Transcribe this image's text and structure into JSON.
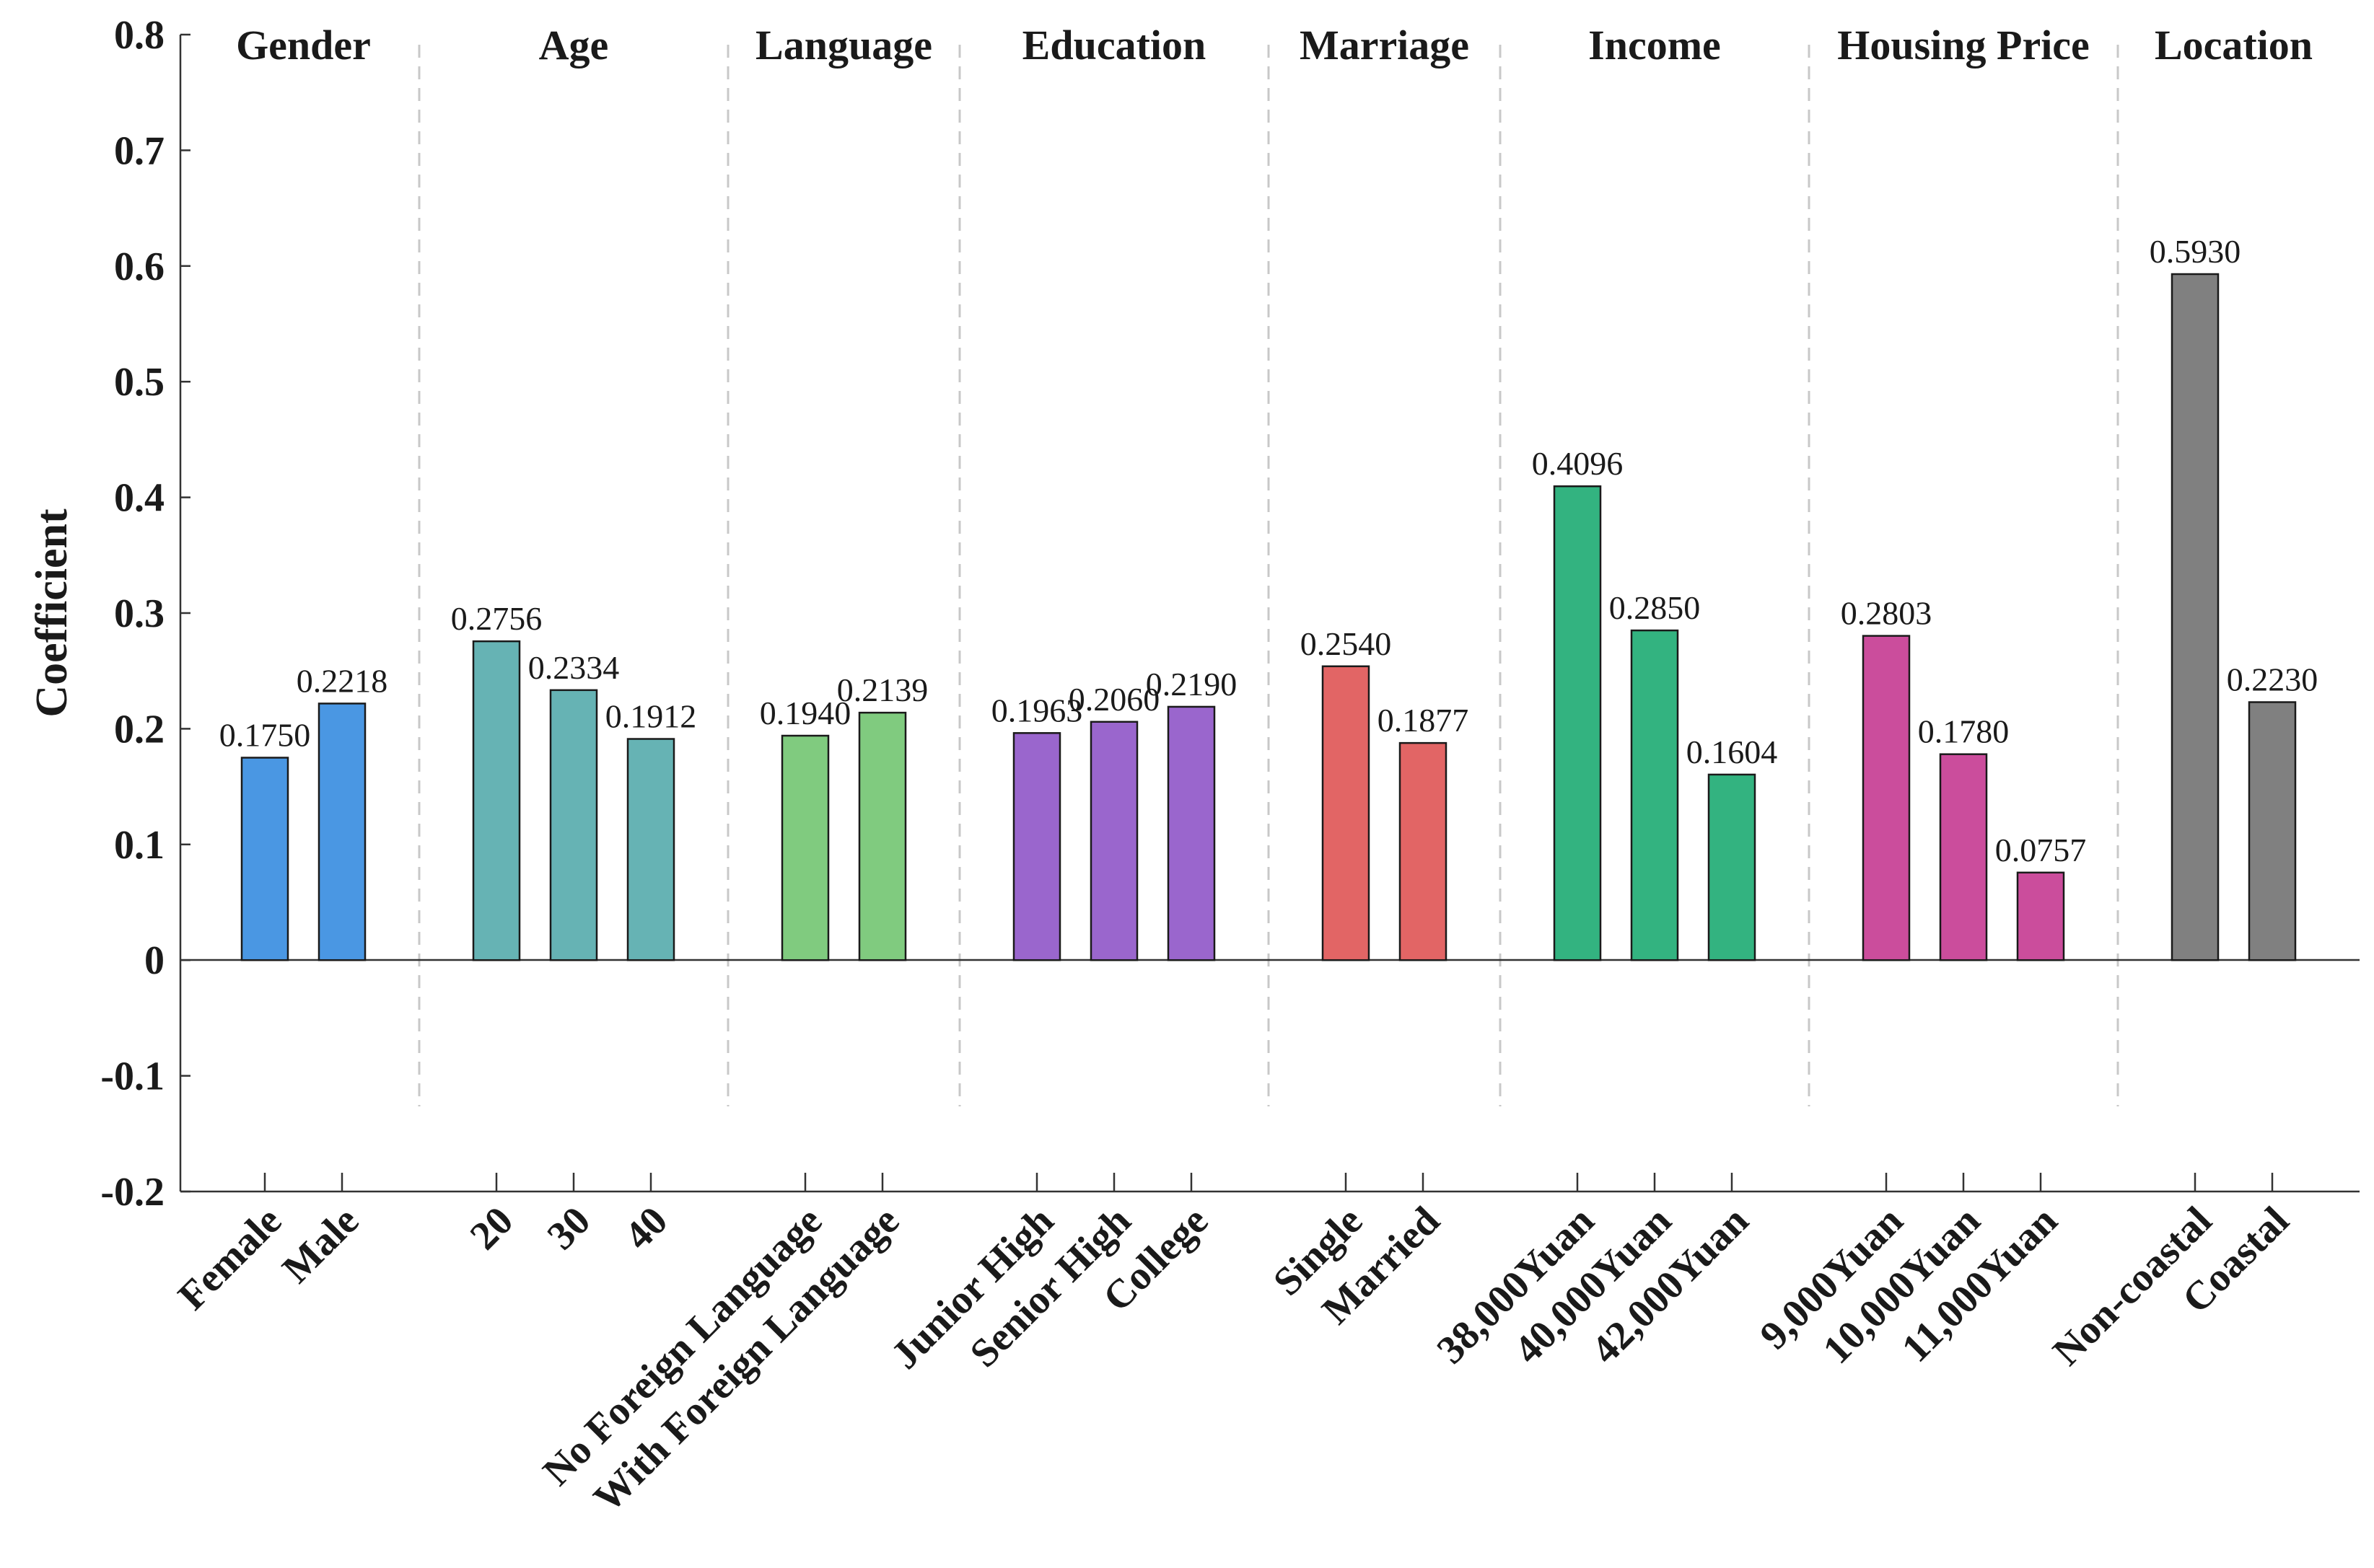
{
  "chart_data": {
    "type": "bar",
    "ylabel": "Coefficient",
    "ylim": [
      -0.2,
      0.8
    ],
    "yticks": [
      "0.8",
      "0.7",
      "0.6",
      "0.5",
      "0.4",
      "0.3",
      "0.2",
      "0.1",
      "0",
      "-0.1",
      "-0.2"
    ],
    "grid": false,
    "groups": [
      {
        "name": "Gender",
        "color": "#4a97e3",
        "categories": [
          "Female",
          "Male"
        ],
        "values": [
          0.175,
          0.2218
        ],
        "labels": [
          "0.1750",
          "0.2218"
        ]
      },
      {
        "name": "Age",
        "color": "#66b3b4",
        "categories": [
          "20",
          "30",
          "40"
        ],
        "values": [
          0.2756,
          0.2334,
          0.1912
        ],
        "labels": [
          "0.2756",
          "0.2334",
          "0.1912"
        ]
      },
      {
        "name": "Language",
        "color": "#80cb7f",
        "categories": [
          "No Foreign Language",
          "With Foreign Language"
        ],
        "values": [
          0.194,
          0.2139
        ],
        "labels": [
          "0.1940",
          "0.2139"
        ]
      },
      {
        "name": "Education",
        "color": "#9a66cd",
        "categories": [
          "Junior High",
          "Senior High",
          "College"
        ],
        "values": [
          0.1963,
          0.206,
          0.219
        ],
        "labels": [
          "0.1963",
          "0.2060",
          "0.2190"
        ]
      },
      {
        "name": "Marriage",
        "color": "#e26565",
        "categories": [
          "Single",
          "Married"
        ],
        "values": [
          0.254,
          0.1877
        ],
        "labels": [
          "0.2540",
          "0.1877"
        ]
      },
      {
        "name": "Income",
        "color": "#33b380",
        "categories": [
          "38,000Yuan",
          "40,000Yuan",
          "42,000Yuan"
        ],
        "values": [
          0.4096,
          0.285,
          0.1604
        ],
        "labels": [
          "0.4096",
          "0.2850",
          "0.1604"
        ]
      },
      {
        "name": "Housing Price",
        "color": "#cb4d9c",
        "categories": [
          "9,000Yuan",
          "10,000Yuan",
          "11,000Yuan"
        ],
        "values": [
          0.2803,
          0.178,
          0.0757
        ],
        "labels": [
          "0.2803",
          "0.1780",
          "0.0757"
        ]
      },
      {
        "name": "Location",
        "color": "#808080",
        "categories": [
          "Non-coastal",
          "Coastal"
        ],
        "values": [
          0.593,
          0.223
        ],
        "labels": [
          "0.5930",
          "0.2230"
        ]
      }
    ]
  }
}
